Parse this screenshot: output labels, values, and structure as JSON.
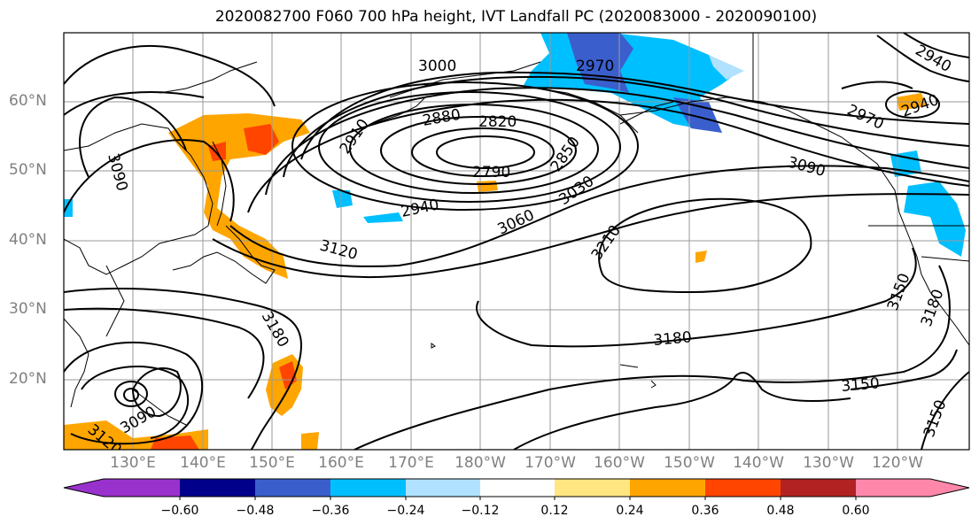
{
  "title": "2020082700 F060 700 hPa height, IVT Landfall PC (2020083000 - 2020090100)",
  "lat_labels": [
    "60°N",
    "50°N",
    "40°N",
    "30°N",
    "20°N"
  ],
  "lon_labels": [
    "130°E",
    "140°E",
    "150°E",
    "160°E",
    "170°E",
    "180°W",
    "170°W",
    "160°W",
    "150°W",
    "140°W",
    "130°W",
    "120°W"
  ],
  "contour_labels": [
    "3000",
    "2970",
    "2940",
    "2970",
    "2940",
    "2880",
    "2820",
    "2910",
    "2790",
    "2850",
    "3090",
    "3090",
    "3030",
    "2940",
    "3060",
    "3120",
    "3210",
    "3150",
    "3180",
    "3180",
    "3180",
    "3150",
    "3150",
    "3090",
    "3120"
  ],
  "colorbar": {
    "ticks": [
      "−0.60",
      "−0.48",
      "−0.36",
      "−0.24",
      "−0.12",
      "0.12",
      "0.24",
      "0.36",
      "0.48",
      "0.60"
    ],
    "colors": [
      "#9932cc",
      "#00008b",
      "#3a5fcd",
      "#00bfff",
      "#b0e2ff",
      "#ffffff",
      "#ffe680",
      "#ffa500",
      "#ff4500",
      "#b22222",
      "#ff88aa"
    ]
  }
}
